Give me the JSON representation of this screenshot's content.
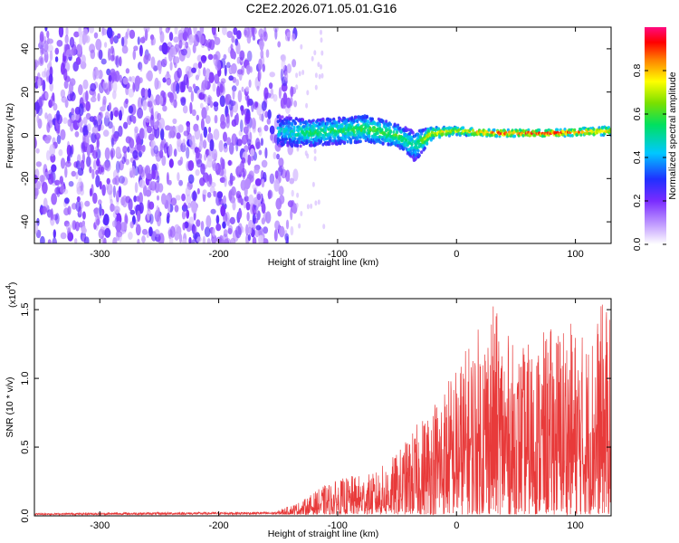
{
  "title": "C2E2.2026.071.05.01.G16",
  "chart_data": [
    {
      "type": "heatmap",
      "title": "C2E2.2026.071.05.01.G16",
      "xlabel": "Height of straight line (km)",
      "ylabel": "Frequency (Hz)",
      "xlim": [
        -355,
        130
      ],
      "ylim": [
        -50,
        50
      ],
      "x_ticks": [
        -300,
        -200,
        -100,
        0,
        100
      ],
      "y_ticks": [
        -40,
        -20,
        0,
        20,
        40
      ],
      "noise_region_x": [
        -355,
        -135
      ],
      "signal_start_x": -150,
      "signal_trace": [
        {
          "x": -150,
          "f_center": 2,
          "f_spread": 14,
          "amp": 0.45
        },
        {
          "x": -125,
          "f_center": 1,
          "f_spread": 12,
          "amp": 0.55
        },
        {
          "x": -100,
          "f_center": 2,
          "f_spread": 12,
          "amp": 0.55
        },
        {
          "x": -75,
          "f_center": 3,
          "f_spread": 12,
          "amp": 0.6
        },
        {
          "x": -50,
          "f_center": 0,
          "f_spread": 10,
          "amp": 0.6
        },
        {
          "x": -35,
          "f_center": -5,
          "f_spread": 14,
          "amp": 0.5
        },
        {
          "x": -20,
          "f_center": 1,
          "f_spread": 5,
          "amp": 0.8
        },
        {
          "x": 0,
          "f_center": 2,
          "f_spread": 4,
          "amp": 0.7
        },
        {
          "x": 30,
          "f_center": 1,
          "f_spread": 3,
          "amp": 0.95
        },
        {
          "x": 80,
          "f_center": 1,
          "f_spread": 3,
          "amp": 0.95
        },
        {
          "x": 128,
          "f_center": 2,
          "f_spread": 4,
          "amp": 0.8
        }
      ],
      "colorbar": {
        "label": "Normalized spectral amplitude",
        "range": [
          0,
          1
        ],
        "ticks": [
          "0.0",
          "0.2",
          "0.4",
          "0.6",
          "0.8"
        ]
      }
    },
    {
      "type": "line",
      "xlabel": "Height of straight line (km)",
      "ylabel": "SNR (10 * v/v)",
      "y_exponent_label": "(x10",
      "y_exponent_power": "4",
      "y_exponent_close": ")",
      "xlim": [
        -355,
        130
      ],
      "ylim": [
        0,
        1.58
      ],
      "x_ticks": [
        -300,
        -200,
        -100,
        0,
        100
      ],
      "y_ticks": [
        "0.0",
        "0.5",
        "1.0",
        "1.5"
      ],
      "color": "#e83a3a",
      "envelope": [
        {
          "x": -355,
          "y": 0.02
        },
        {
          "x": -150,
          "y": 0.03
        },
        {
          "x": -130,
          "y": 0.1
        },
        {
          "x": -110,
          "y": 0.22
        },
        {
          "x": -90,
          "y": 0.28
        },
        {
          "x": -70,
          "y": 0.3
        },
        {
          "x": -50,
          "y": 0.45
        },
        {
          "x": -30,
          "y": 0.7
        },
        {
          "x": -20,
          "y": 0.85
        },
        {
          "x": 0,
          "y": 1.1
        },
        {
          "x": 10,
          "y": 1.25
        },
        {
          "x": 30,
          "y": 1.55
        },
        {
          "x": 50,
          "y": 1.2
        },
        {
          "x": 70,
          "y": 1.3
        },
        {
          "x": 90,
          "y": 1.45
        },
        {
          "x": 110,
          "y": 1.3
        },
        {
          "x": 125,
          "y": 1.6
        },
        {
          "x": 130,
          "y": 1.4
        }
      ]
    }
  ]
}
